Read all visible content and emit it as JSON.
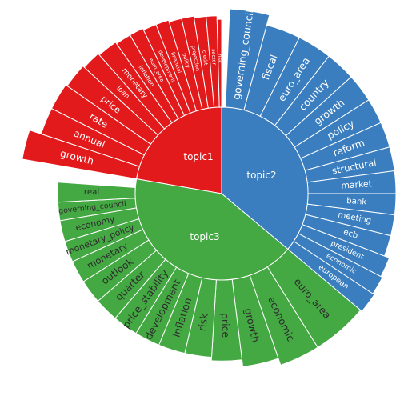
{
  "chart_data": {
    "type": "sunburst",
    "colors": {
      "topic1": "#e31a1c",
      "topic2": "#3a7ebf",
      "topic3": "#44a843",
      "outer_label": "#ffffff",
      "inner_label": "#ffffff",
      "topic3_outer_label": "#2d2d2d"
    },
    "topics": [
      {
        "name": "topic1",
        "start_deg": 279.8,
        "end_deg": 360,
        "words": [
          {
            "label": "growth",
            "start_deg": 279.8,
            "end_deg": 288.3,
            "r_outer": 1.16
          },
          {
            "label": "annual",
            "start_deg": 288.3,
            "end_deg": 296.6,
            "r_outer": 1.09
          },
          {
            "label": "rate",
            "start_deg": 296.6,
            "end_deg": 304.9,
            "r_outer": 1.09
          },
          {
            "label": "price",
            "start_deg": 304.9,
            "end_deg": 312.6,
            "r_outer": 1.08
          },
          {
            "label": "loan",
            "start_deg": 312.6,
            "end_deg": 318.6,
            "r_outer": 1.07
          },
          {
            "label": "monetary",
            "start_deg": 318.6,
            "end_deg": 325.0,
            "r_outer": 1.06
          },
          {
            "label": "inflation",
            "start_deg": 325.0,
            "end_deg": 330.0,
            "r_outer": 1.05
          },
          {
            "label": "euro_area",
            "start_deg": 330.0,
            "end_deg": 334.5,
            "r_outer": 1.05
          },
          {
            "label": "development",
            "start_deg": 334.5,
            "end_deg": 338.8,
            "r_outer": 1.04
          },
          {
            "label": "financial",
            "start_deg": 338.8,
            "end_deg": 343.0,
            "r_outer": 1.04
          },
          {
            "label": "policy",
            "start_deg": 343.0,
            "end_deg": 347.1,
            "r_outer": 1.03
          },
          {
            "label": "projection",
            "start_deg": 347.1,
            "end_deg": 351.1,
            "r_outer": 1.03
          },
          {
            "label": "credit",
            "start_deg": 351.1,
            "end_deg": 355.0,
            "r_outer": 1.02
          },
          {
            "label": "sector",
            "start_deg": 355.0,
            "end_deg": 358.5,
            "r_outer": 1.02
          },
          {
            "label": "risk",
            "start_deg": 358.5,
            "end_deg": 360.0,
            "r_outer": 1.0
          }
        ]
      },
      {
        "name": "topic2",
        "start_deg": 0,
        "end_deg": 130,
        "words": [
          {
            "label": "governing_council",
            "start_deg": 2.5,
            "end_deg": 15.0,
            "r_outer": 1.06
          },
          {
            "label": "fiscal",
            "start_deg": 15.0,
            "end_deg": 26.5,
            "r_outer": 1.0
          },
          {
            "label": "euro_area",
            "start_deg": 26.5,
            "end_deg": 38.0,
            "r_outer": 1.0
          },
          {
            "label": "country",
            "start_deg": 38.0,
            "end_deg": 48.0,
            "r_outer": 1.0
          },
          {
            "label": "growth",
            "start_deg": 48.0,
            "end_deg": 57.5,
            "r_outer": 1.0
          },
          {
            "label": "policy",
            "start_deg": 57.5,
            "end_deg": 66.0,
            "r_outer": 1.0
          },
          {
            "label": "reform",
            "start_deg": 66.0,
            "end_deg": 74.5,
            "r_outer": 1.0
          },
          {
            "label": "structural",
            "start_deg": 74.5,
            "end_deg": 82.5,
            "r_outer": 1.0
          },
          {
            "label": "market",
            "start_deg": 82.5,
            "end_deg": 90.0,
            "r_outer": 1.0
          },
          {
            "label": "bank",
            "start_deg": 90.0,
            "end_deg": 97.0,
            "r_outer": 1.0
          },
          {
            "label": "meeting",
            "start_deg": 97.0,
            "end_deg": 104.0,
            "r_outer": 1.0
          },
          {
            "label": "ecb",
            "start_deg": 104.0,
            "end_deg": 111.0,
            "r_outer": 1.0
          },
          {
            "label": "president",
            "start_deg": 111.0,
            "end_deg": 117.5,
            "r_outer": 1.03
          },
          {
            "label": "economic",
            "start_deg": 117.5,
            "end_deg": 123.5,
            "r_outer": 1.04
          },
          {
            "label": "european",
            "start_deg": 123.5,
            "end_deg": 130.0,
            "r_outer": 1.05
          }
        ]
      },
      {
        "name": "topic3",
        "start_deg": 130,
        "end_deg": 279.8,
        "words": [
          {
            "label": "euro_area",
            "start_deg": 130.0,
            "end_deg": 148.0,
            "r_outer": 1.04
          },
          {
            "label": "economic",
            "start_deg": 148.0,
            "end_deg": 161.0,
            "r_outer": 1.04
          },
          {
            "label": "growth",
            "start_deg": 161.0,
            "end_deg": 173.0,
            "r_outer": 1.0
          },
          {
            "label": "price",
            "start_deg": 173.0,
            "end_deg": 183.5,
            "r_outer": 0.96
          },
          {
            "label": "risk",
            "start_deg": 183.5,
            "end_deg": 193.0,
            "r_outer": 0.94
          },
          {
            "label": "inflation",
            "start_deg": 193.0,
            "end_deg": 202.5,
            "r_outer": 0.94
          },
          {
            "label": "development",
            "start_deg": 202.5,
            "end_deg": 211.5,
            "r_outer": 0.94
          },
          {
            "label": "price_stability",
            "start_deg": 211.5,
            "end_deg": 220.5,
            "r_outer": 0.94
          },
          {
            "label": "quarter",
            "start_deg": 220.5,
            "end_deg": 229.0,
            "r_outer": 0.94
          },
          {
            "label": "outlook",
            "start_deg": 229.0,
            "end_deg": 237.5,
            "r_outer": 0.94
          },
          {
            "label": "monetary",
            "start_deg": 237.5,
            "end_deg": 245.5,
            "r_outer": 0.94
          },
          {
            "label": "monetary_policy",
            "start_deg": 245.5,
            "end_deg": 253.0,
            "r_outer": 0.94
          },
          {
            "label": "economy",
            "start_deg": 253.0,
            "end_deg": 260.5,
            "r_outer": 0.94
          },
          {
            "label": "governing_council",
            "start_deg": 260.5,
            "end_deg": 267.0,
            "r_outer": 0.94
          },
          {
            "label": "real",
            "start_deg": 267.0,
            "end_deg": 274.0,
            "r_outer": 0.94
          }
        ]
      }
    ]
  }
}
